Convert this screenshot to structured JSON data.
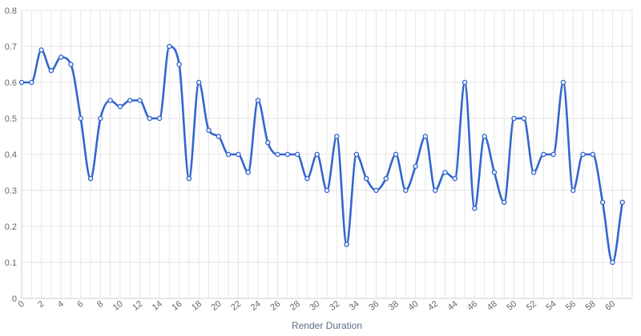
{
  "chart_data": {
    "type": "line",
    "title": "",
    "xlabel": "Render Duration",
    "ylabel": "",
    "xlim": [
      0,
      62
    ],
    "ylim": [
      0,
      0.8
    ],
    "x_ticks": [
      0,
      2,
      4,
      6,
      8,
      10,
      12,
      14,
      16,
      18,
      20,
      22,
      24,
      26,
      28,
      30,
      32,
      34,
      36,
      38,
      40,
      42,
      44,
      46,
      48,
      50,
      52,
      54,
      56,
      58,
      60
    ],
    "y_ticks": [
      0,
      0.1,
      0.2,
      0.3,
      0.4,
      0.5,
      0.6,
      0.7,
      0.8
    ],
    "grid": true,
    "legend": "none",
    "colors": {
      "line": "#3366cc",
      "point_fill": "#e8eefb",
      "grid": "#e6e6e6"
    },
    "series": [
      {
        "x": [
          0,
          1,
          2,
          3,
          4,
          5,
          6,
          7,
          8,
          9,
          10,
          11,
          12,
          13,
          14,
          15,
          16,
          17,
          18,
          19,
          20,
          21,
          22,
          23,
          24,
          25,
          26,
          27,
          28,
          29,
          30,
          31,
          32,
          33,
          34,
          35,
          36,
          37,
          38,
          39,
          40,
          41,
          42,
          43,
          44,
          45,
          46,
          47,
          48,
          49,
          50,
          51,
          52,
          53,
          54,
          55,
          56,
          57,
          58,
          59,
          60,
          61
        ],
        "values": [
          0.6,
          0.6,
          0.69,
          0.633,
          0.67,
          0.65,
          0.5,
          0.333,
          0.5,
          0.55,
          0.533,
          0.55,
          0.55,
          0.5,
          0.5,
          0.7,
          0.65,
          0.333,
          0.6,
          0.467,
          0.45,
          0.4,
          0.4,
          0.35,
          0.55,
          0.433,
          0.4,
          0.4,
          0.4,
          0.333,
          0.4,
          0.3,
          0.45,
          0.15,
          0.4,
          0.333,
          0.3,
          0.333,
          0.4,
          0.3,
          0.367,
          0.45,
          0.3,
          0.35,
          0.333,
          0.6,
          0.25,
          0.45,
          0.35,
          0.267,
          0.5,
          0.5,
          0.35,
          0.4,
          0.4,
          0.6,
          0.3,
          0.4,
          0.4,
          0.267,
          0.1,
          0.267
        ]
      }
    ]
  }
}
